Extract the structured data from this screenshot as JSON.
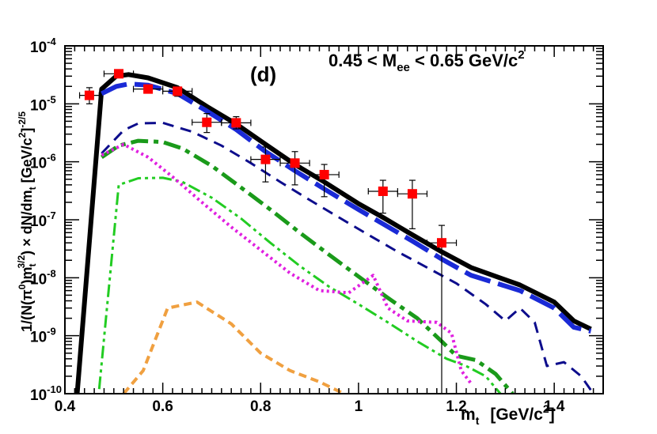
{
  "chart_data": {
    "type": "line",
    "title": "",
    "panel_label": "(d)",
    "mass_window": {
      "prefix": "0.45 < M",
      "subscript": "ee",
      "suffix": " < 0.65 GeV/c",
      "sup": "2"
    },
    "xaxis": {
      "label_main": "m",
      "label_sub": "t",
      "label_units": "[GeV/c",
      "label_sup": "2",
      "label_close": "]",
      "range": [
        0.4,
        1.5
      ],
      "ticks": [
        0.4,
        0.6,
        0.8,
        1.0,
        1.2,
        1.4
      ],
      "tick_labels": [
        "0.4",
        "0.6",
        "0.8",
        "1",
        "1.2",
        "1.4"
      ]
    },
    "yaxis": {
      "scale": "log",
      "range": [
        1e-10,
        0.0001
      ],
      "ticks": [
        -10,
        -9,
        -8,
        -7,
        -6,
        -5,
        -4
      ],
      "tick_label_base": "10",
      "tick_label_exponents": [
        "-10",
        "-9",
        "-8",
        "-7",
        "-6",
        "-5",
        "-4"
      ],
      "label": "1/(N(π⁰)m_t^{3/2}) × dN/dm_t [GeV/c²]^{-2/5}",
      "label_parts": {
        "a": "1/(N(π",
        "a_sup": "0",
        "b": ")m",
        "b_sub": "t",
        "b_sup": "3/2",
        "c": ") × dN/dm",
        "c_sub": "t",
        "d": "  [GeV/c",
        "d_sup": "2",
        "e": "]",
        "e_sup": "-2/5"
      }
    },
    "series": [
      {
        "name": "Total",
        "color": "#000000",
        "style": "solid",
        "width": 6,
        "x": [
          0.425,
          0.475,
          0.505,
          0.53,
          0.57,
          0.63,
          0.69,
          0.75,
          0.81,
          0.87,
          0.93,
          1.0,
          1.05,
          1.11,
          1.17,
          1.23,
          1.33,
          1.4,
          1.44,
          1.475
        ],
        "y": [
          1e-10,
          1.8e-05,
          3e-05,
          3.2e-05,
          2.8e-05,
          1.9e-05,
          9e-06,
          4.5e-06,
          2e-06,
          9e-07,
          4.5e-07,
          1.9e-07,
          1.1e-07,
          5.5e-08,
          2.8e-08,
          1.5e-08,
          7.5e-09,
          3.8e-09,
          1.8e-09,
          1.3e-09
        ]
      },
      {
        "name": "Blue long-dashed",
        "color": "#1a2ad6",
        "style": "longdash",
        "width": 6,
        "x": [
          0.475,
          0.505,
          0.53,
          0.57,
          0.63,
          0.69,
          0.75,
          0.81,
          0.87,
          0.93,
          1.0,
          1.05,
          1.11,
          1.17,
          1.23,
          1.33,
          1.4,
          1.44,
          1.475
        ],
        "y": [
          1.5e-05,
          2e-05,
          2.2e-05,
          2.1e-05,
          1.5e-05,
          7.5e-06,
          3.6e-06,
          1.5e-06,
          7e-07,
          3.4e-07,
          1.5e-07,
          8.5e-08,
          4.3e-08,
          2.1e-08,
          1.1e-08,
          6e-09,
          3e-09,
          1.4e-09,
          1.2e-09
        ]
      },
      {
        "name": "Navy dashed",
        "color": "#0d0d8c",
        "style": "dash",
        "width": 3,
        "x": [
          0.475,
          0.52,
          0.55,
          0.6,
          0.66,
          0.72,
          0.78,
          0.84,
          0.9,
          0.96,
          1.02,
          1.08,
          1.14,
          1.2,
          1.26,
          1.3,
          1.33,
          1.36,
          1.385,
          1.42,
          1.455,
          1.48
        ],
        "y": [
          1.4e-06,
          3.5e-06,
          4.6e-06,
          4.7e-06,
          3.3e-06,
          1.9e-06,
          9.5e-07,
          4.5e-07,
          2.2e-07,
          1.1e-07,
          5.5e-08,
          2.8e-08,
          1.5e-08,
          8e-09,
          3.5e-09,
          1.8e-09,
          3e-09,
          1.7e-09,
          3e-10,
          3.5e-10,
          2e-10,
          1e-10
        ]
      },
      {
        "name": "Green dash-dot",
        "color": "#1a9a1a",
        "style": "dashdot",
        "width": 5,
        "x": [
          0.475,
          0.51,
          0.55,
          0.6,
          0.64,
          0.7,
          0.76,
          0.82,
          0.88,
          0.94,
          1.0,
          1.06,
          1.12,
          1.17,
          1.2,
          1.24,
          1.28,
          1.315
        ],
        "y": [
          1.2e-06,
          1.9e-06,
          2.3e-06,
          2.2e-06,
          1.7e-06,
          8.5e-07,
          3.6e-07,
          1.5e-07,
          6e-08,
          2.5e-08,
          1.05e-08,
          4.5e-09,
          2e-09,
          8e-10,
          4.5e-10,
          3.8e-10,
          2.2e-10,
          1e-10
        ]
      },
      {
        "name": "Light-green dash-dot-dot",
        "color": "#22cc22",
        "style": "dashdotdot",
        "width": 3,
        "x": [
          0.47,
          0.51,
          0.55,
          0.6,
          0.64,
          0.7,
          0.76,
          0.82,
          0.88,
          0.94,
          1.0,
          1.06,
          1.12,
          1.18,
          1.22,
          1.26,
          1.29
        ],
        "y": [
          1.2e-10,
          4e-07,
          5.2e-07,
          5.3e-07,
          4.5e-07,
          2.4e-07,
          1.05e-07,
          4e-08,
          1.6e-08,
          7e-09,
          3.5e-09,
          1.7e-09,
          8e-10,
          4e-10,
          3e-10,
          2e-10,
          1e-10
        ]
      },
      {
        "name": "Magenta dotted",
        "color": "#e020e0",
        "style": "dot",
        "width": 4,
        "x": [
          0.475,
          0.52,
          0.57,
          0.62,
          0.68,
          0.74,
          0.8,
          0.86,
          0.92,
          0.98,
          1.03,
          1.06,
          1.1,
          1.16,
          1.19,
          1.21,
          1.23
        ],
        "y": [
          1.3e-06,
          2e-06,
          1.2e-06,
          5.5e-07,
          2e-07,
          7.5e-08,
          3e-08,
          1.2e-08,
          6e-09,
          5.5e-09,
          1.1e-08,
          3e-09,
          1.8e-09,
          1.7e-09,
          1.1e-09,
          2.5e-10,
          1.5e-10
        ]
      },
      {
        "name": "Orange short-dashed",
        "color": "#f0a040",
        "style": "shortdash",
        "width": 4,
        "x": [
          0.52,
          0.56,
          0.61,
          0.67,
          0.74,
          0.8,
          0.86,
          0.92,
          0.97
        ],
        "y": [
          1e-10,
          2.5e-10,
          3e-09,
          3.8e-09,
          1.6e-09,
          5e-10,
          2.5e-10,
          1.6e-10,
          1e-10
        ]
      }
    ],
    "points": {
      "name": "Data",
      "color": "#ff0000",
      "x": [
        0.45,
        0.51,
        0.57,
        0.63,
        0.69,
        0.75,
        0.81,
        0.87,
        0.93,
        1.05,
        1.11,
        1.17
      ],
      "y": [
        1.4e-05,
        3.3e-05,
        1.8e-05,
        1.65e-05,
        4.8e-06,
        4.7e-06,
        1.1e-06,
        9.5e-07,
        6e-07,
        3.1e-07,
        2.8e-07,
        4e-08
      ],
      "xerr": [
        0.02,
        0.03,
        0.03,
        0.03,
        0.03,
        0.03,
        0.03,
        0.03,
        0.03,
        0.03,
        0.03,
        0.03
      ],
      "ylo": [
        1e-05,
        3.1e-05,
        1.55e-05,
        1.35e-05,
        3.2e-06,
        3.7e-06,
        4.5e-07,
        4e-07,
        2.5e-07,
        1.3e-07,
        7e-08,
        1e-10
      ],
      "yhi": [
        1.9e-05,
        3.6e-05,
        2.1e-05,
        1.9e-05,
        6.8e-06,
        6e-06,
        1.8e-06,
        1.5e-06,
        9e-07,
        4.8e-07,
        4.8e-07,
        8e-08
      ]
    }
  }
}
